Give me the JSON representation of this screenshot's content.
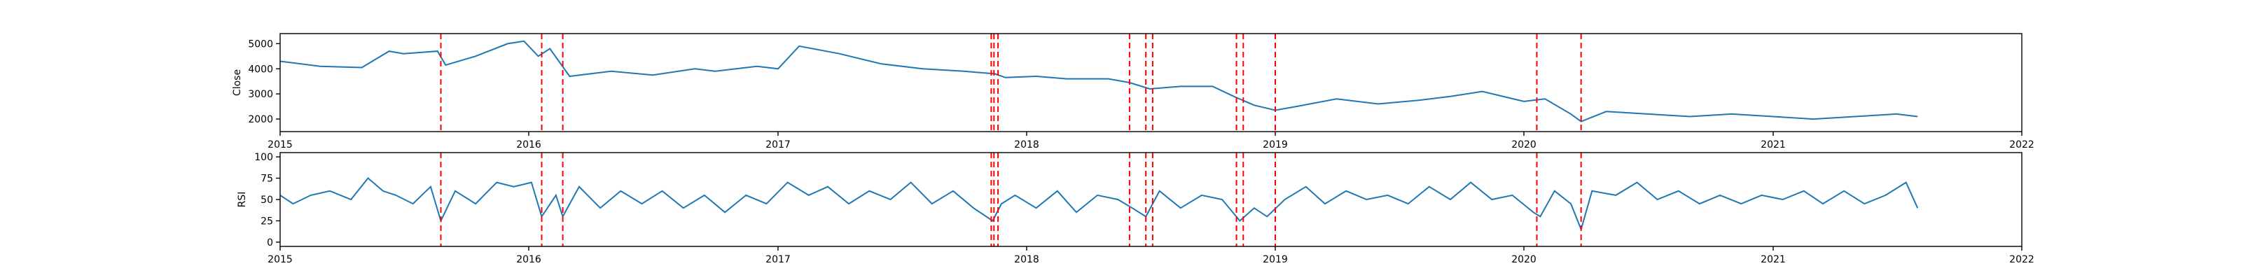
{
  "figure": {
    "background": "#ffffff",
    "line_color": "#1f77b4",
    "vline_color": "#ff0000"
  },
  "chart_data": [
    {
      "type": "line",
      "ylabel": "Close",
      "xlabel": "",
      "x_tick_labels": [
        "2015",
        "2016",
        "2017",
        "2018",
        "2019",
        "2020",
        "2021",
        "2022"
      ],
      "xlim": [
        "2015-01-01",
        "2022-01-01"
      ],
      "ylim": [
        1500,
        5400
      ],
      "y_ticks": [
        2000,
        3000,
        4000,
        5000
      ],
      "grid": false,
      "series": [
        {
          "x": [
            "2015-01-01",
            "2015-03-01",
            "2015-05-01",
            "2015-06-10",
            "2015-07-01",
            "2015-08-20",
            "2015-09-01",
            "2015-10-15",
            "2015-12-01",
            "2015-12-25",
            "2016-01-15",
            "2016-02-01",
            "2016-03-01",
            "2016-05-01",
            "2016-07-01",
            "2016-09-01",
            "2016-10-01",
            "2016-12-01",
            "2017-01-01",
            "2017-02-01",
            "2017-04-01",
            "2017-06-01",
            "2017-08-01",
            "2017-10-01",
            "2017-11-15",
            "2017-12-01",
            "2018-01-15",
            "2018-03-01",
            "2018-05-01",
            "2018-06-01",
            "2018-07-01",
            "2018-08-15",
            "2018-10-01",
            "2018-11-01",
            "2018-12-01",
            "2019-01-01",
            "2019-02-01",
            "2019-04-01",
            "2019-06-01",
            "2019-08-01",
            "2019-09-15",
            "2019-11-01",
            "2020-01-01",
            "2020-02-01",
            "2020-03-10",
            "2020-03-25",
            "2020-05-01",
            "2020-07-01",
            "2020-09-01",
            "2020-11-01",
            "2021-01-01",
            "2021-03-01",
            "2021-05-01",
            "2021-07-01",
            "2021-08-01"
          ],
          "y": [
            4300,
            4100,
            4050,
            4700,
            4600,
            4700,
            4150,
            4500,
            5000,
            5100,
            4500,
            4800,
            3700,
            3900,
            3750,
            4000,
            3900,
            4100,
            4000,
            4900,
            4600,
            4200,
            4000,
            3900,
            3800,
            3650,
            3700,
            3600,
            3600,
            3450,
            3200,
            3300,
            3300,
            2900,
            2550,
            2350,
            2500,
            2800,
            2600,
            2750,
            2900,
            3100,
            2700,
            2800,
            2200,
            1900,
            2300,
            2200,
            2100,
            2200,
            2100,
            2000,
            2100,
            2200,
            2100
          ]
        }
      ],
      "event_lines": [
        "2015-08-25",
        "2016-01-20",
        "2016-02-20",
        "2017-11-10",
        "2017-11-14",
        "2017-11-20",
        "2018-06-01",
        "2018-06-25",
        "2018-07-05",
        "2018-11-05",
        "2018-11-15",
        "2019-01-01",
        "2020-01-20",
        "2020-03-25"
      ]
    },
    {
      "type": "line",
      "ylabel": "RSI",
      "xlabel": "",
      "x_tick_labels": [
        "2015",
        "2016",
        "2017",
        "2018",
        "2019",
        "2020",
        "2021",
        "2022"
      ],
      "xlim": [
        "2015-01-01",
        "2022-01-01"
      ],
      "ylim": [
        -5,
        105
      ],
      "y_ticks": [
        0,
        25,
        50,
        75,
        100
      ],
      "grid": false,
      "series": [
        {
          "x": [
            "2015-01-01",
            "2015-01-20",
            "2015-02-15",
            "2015-03-15",
            "2015-04-15",
            "2015-05-10",
            "2015-06-01",
            "2015-06-20",
            "2015-07-15",
            "2015-08-10",
            "2015-08-25",
            "2015-09-15",
            "2015-10-15",
            "2015-11-15",
            "2015-12-10",
            "2016-01-05",
            "2016-01-20",
            "2016-02-10",
            "2016-02-20",
            "2016-03-15",
            "2016-04-15",
            "2016-05-15",
            "2016-06-15",
            "2016-07-15",
            "2016-08-15",
            "2016-09-15",
            "2016-10-15",
            "2016-11-15",
            "2016-12-15",
            "2017-01-15",
            "2017-02-15",
            "2017-03-15",
            "2017-04-15",
            "2017-05-15",
            "2017-06-15",
            "2017-07-15",
            "2017-08-15",
            "2017-09-15",
            "2017-10-15",
            "2017-11-12",
            "2017-11-25",
            "2017-12-15",
            "2018-01-15",
            "2018-02-15",
            "2018-03-15",
            "2018-04-15",
            "2018-05-15",
            "2018-06-05",
            "2018-06-25",
            "2018-07-15",
            "2018-08-15",
            "2018-09-15",
            "2018-10-15",
            "2018-11-10",
            "2018-12-01",
            "2018-12-20",
            "2019-01-15",
            "2019-02-15",
            "2019-03-15",
            "2019-04-15",
            "2019-05-15",
            "2019-06-15",
            "2019-07-15",
            "2019-08-15",
            "2019-09-15",
            "2019-10-15",
            "2019-11-15",
            "2019-12-15",
            "2020-01-15",
            "2020-01-25",
            "2020-02-15",
            "2020-03-10",
            "2020-03-25",
            "2020-04-10",
            "2020-05-15",
            "2020-06-15",
            "2020-07-15",
            "2020-08-15",
            "2020-09-15",
            "2020-10-15",
            "2020-11-15",
            "2020-12-15",
            "2021-01-15",
            "2021-02-15",
            "2021-03-15",
            "2021-04-15",
            "2021-05-15",
            "2021-06-15",
            "2021-07-15",
            "2021-08-01"
          ],
          "y": [
            55,
            45,
            55,
            60,
            50,
            75,
            60,
            55,
            45,
            65,
            25,
            60,
            45,
            70,
            65,
            70,
            30,
            55,
            30,
            65,
            40,
            60,
            45,
            60,
            40,
            55,
            35,
            55,
            45,
            70,
            55,
            65,
            45,
            60,
            50,
            70,
            45,
            60,
            40,
            25,
            45,
            55,
            40,
            60,
            35,
            55,
            50,
            40,
            30,
            60,
            40,
            55,
            50,
            25,
            40,
            30,
            50,
            65,
            45,
            60,
            50,
            55,
            45,
            65,
            50,
            70,
            50,
            55,
            35,
            30,
            60,
            45,
            15,
            60,
            55,
            70,
            50,
            60,
            45,
            55,
            45,
            55,
            50,
            60,
            45,
            60,
            45,
            55,
            70,
            40
          ]
        }
      ],
      "event_lines": [
        "2015-08-25",
        "2016-01-20",
        "2016-02-20",
        "2017-11-10",
        "2017-11-14",
        "2017-11-20",
        "2018-06-01",
        "2018-06-25",
        "2018-07-05",
        "2018-11-05",
        "2018-11-15",
        "2019-01-01",
        "2020-01-20",
        "2020-03-25"
      ]
    }
  ]
}
